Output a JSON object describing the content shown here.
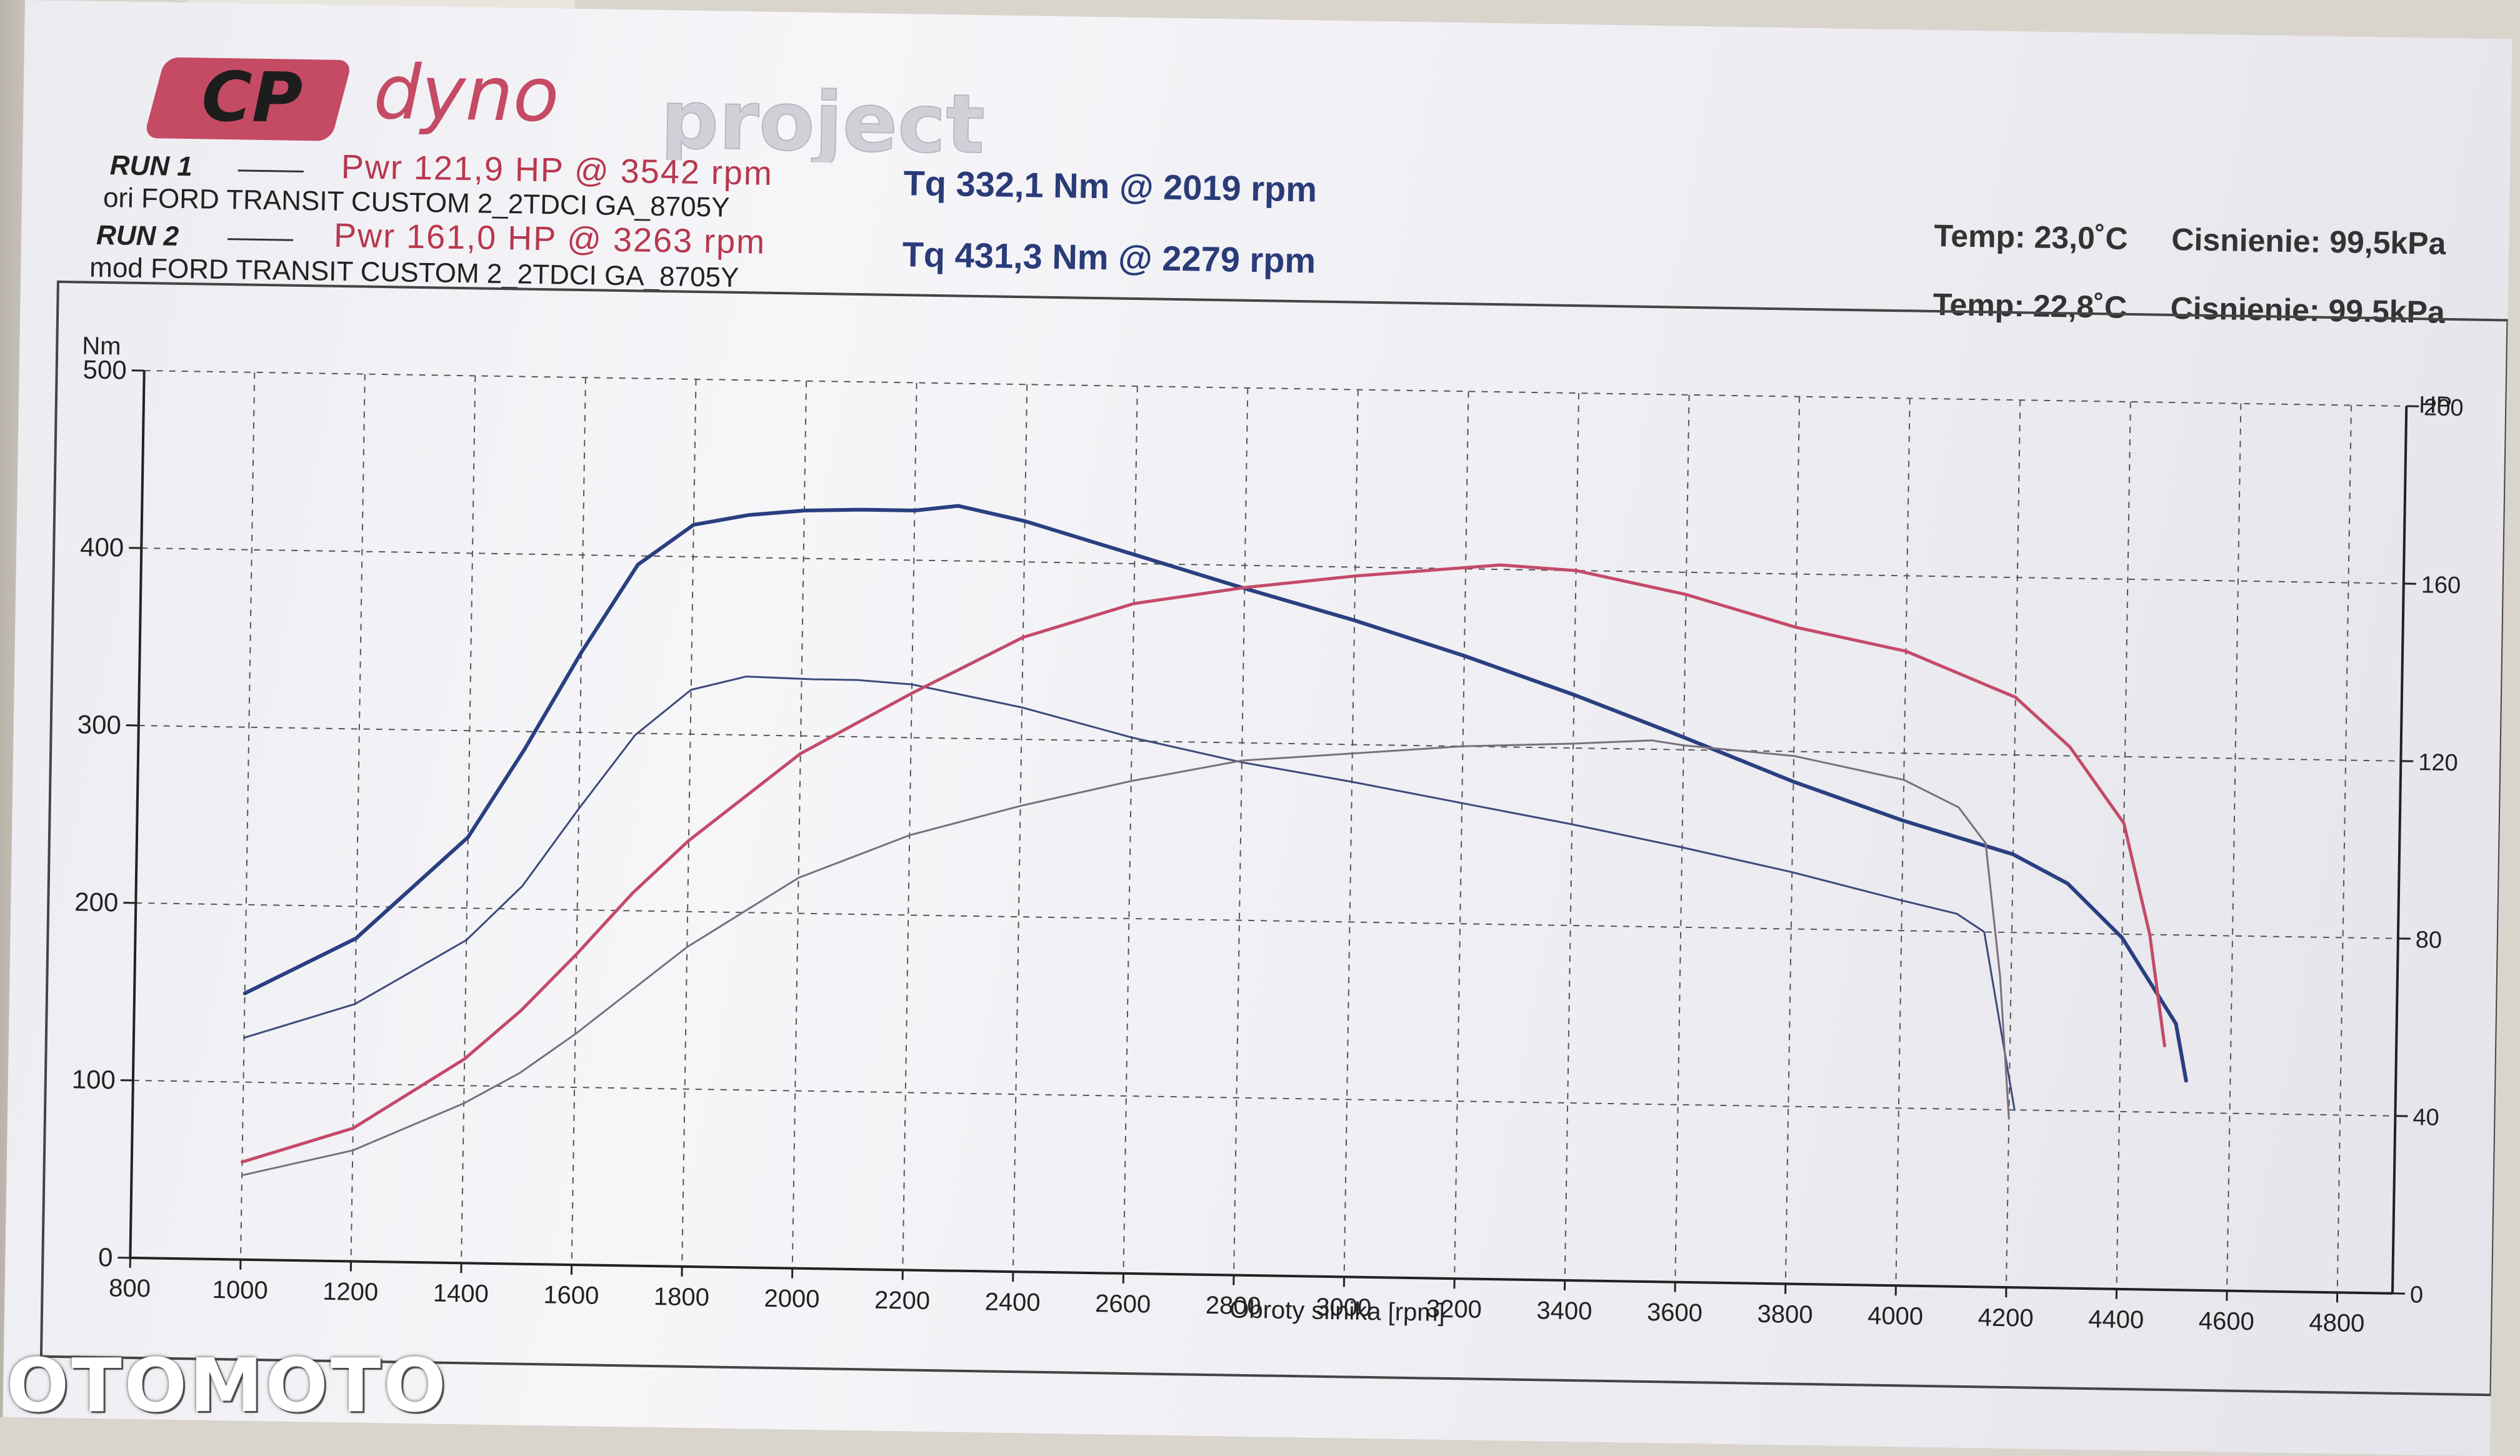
{
  "header": {
    "brand_icon_text": "CP",
    "brand_word_1": "dyno",
    "brand_word_2": "project",
    "run1": {
      "label": "RUN 1",
      "power": "Pwr  121,9 HP @ 3542 rpm",
      "car": "ori FORD TRANSIT CUSTOM 2_2TDCI GA_8705Y",
      "torque": "Tq 332,1 Nm @ 2019 rpm",
      "temp": "Temp: 23,0˚C",
      "pressure": "Cisnienie: 99,5kPa"
    },
    "run2": {
      "label": "RUN 2",
      "power": "Pwr  161,0 HP @ 3263 rpm",
      "car": "mod FORD TRANSIT CUSTOM 2_2TDCI GA_8705Y",
      "torque": "Tq 431,3 Nm @ 2279 rpm",
      "temp": "Temp: 22,8˚C",
      "pressure": "Cisnienie: 99.5kPa"
    }
  },
  "watermark": "OTOMOTO",
  "colors": {
    "torque_line": "#2a3f80",
    "power_line": "#c44a68",
    "torque_run1": "#3d4a7a",
    "power_run1": "#7a6f7e",
    "grid": "#555555"
  },
  "chart_data": {
    "type": "line",
    "title": "",
    "xlabel": "Obroty silnika [rpm]",
    "ylabel_left": "Nm",
    "ylabel_right": "HP",
    "xlim": [
      800,
      4900
    ],
    "ylim_left": [
      0,
      500
    ],
    "ylim_right": [
      0,
      200
    ],
    "x_ticks": [
      800,
      1000,
      1200,
      1400,
      1600,
      1800,
      2000,
      2200,
      2400,
      2600,
      2800,
      3000,
      3200,
      3400,
      3600,
      3800,
      4000,
      4200,
      4400,
      4600,
      4800
    ],
    "y_ticks_left": [
      0,
      100,
      200,
      300,
      400,
      500
    ],
    "y_ticks_right": [
      0,
      40,
      80,
      120,
      160,
      200
    ],
    "grid": true,
    "series": [
      {
        "run": "RUN 2",
        "quantity": "torque",
        "axis": "left",
        "x": [
          1000,
          1200,
          1400,
          1500,
          1600,
          1700,
          1800,
          1900,
          2000,
          2100,
          2200,
          2279,
          2400,
          2600,
          2800,
          3000,
          3200,
          3400,
          3600,
          3800,
          4000,
          4200,
          4300,
          4400,
          4500,
          4520
        ],
        "y": [
          150,
          182,
          240,
          290,
          345,
          395,
          418,
          424,
          427,
          428,
          428,
          431,
          423,
          405,
          387,
          370,
          351,
          330,
          307,
          283,
          262,
          244,
          228,
          198,
          150,
          118
        ]
      },
      {
        "run": "RUN 1",
        "quantity": "torque",
        "axis": "left",
        "x": [
          1000,
          1200,
          1400,
          1500,
          1600,
          1700,
          1800,
          1900,
          2019,
          2100,
          2200,
          2400,
          2600,
          2800,
          3000,
          3200,
          3400,
          3600,
          3800,
          4000,
          4100,
          4150,
          4180,
          4210
        ],
        "y": [
          125,
          145,
          182,
          213,
          257,
          299,
          325,
          333,
          332,
          332,
          330,
          318,
          302,
          289,
          279,
          268,
          257,
          245,
          232,
          217,
          210,
          200,
          150,
          100
        ]
      },
      {
        "run": "RUN 2",
        "quantity": "power",
        "axis": "right",
        "x": [
          1000,
          1200,
          1400,
          1500,
          1600,
          1700,
          1800,
          2000,
          2200,
          2400,
          2600,
          2800,
          3000,
          3263,
          3400,
          3600,
          3800,
          4000,
          4200,
          4300,
          4400,
          4450,
          4480
        ],
        "y": [
          22,
          30,
          46,
          57,
          70,
          84,
          96,
          116,
          130,
          143,
          151,
          155,
          158,
          161,
          160,
          155,
          148,
          143,
          133,
          122,
          105,
          80,
          55
        ]
      },
      {
        "run": "RUN 1",
        "quantity": "power",
        "axis": "right",
        "x": [
          1000,
          1200,
          1400,
          1500,
          1600,
          1700,
          1800,
          2000,
          2200,
          2400,
          2600,
          2800,
          3000,
          3200,
          3400,
          3542,
          3600,
          3800,
          4000,
          4100,
          4150,
          4180,
          4200
        ],
        "y": [
          19,
          25,
          36,
          43,
          52,
          62,
          72,
          88,
          98,
          105,
          111,
          116,
          118,
          120,
          121,
          122,
          121,
          119,
          114,
          108,
          100,
          70,
          38
        ]
      }
    ]
  }
}
